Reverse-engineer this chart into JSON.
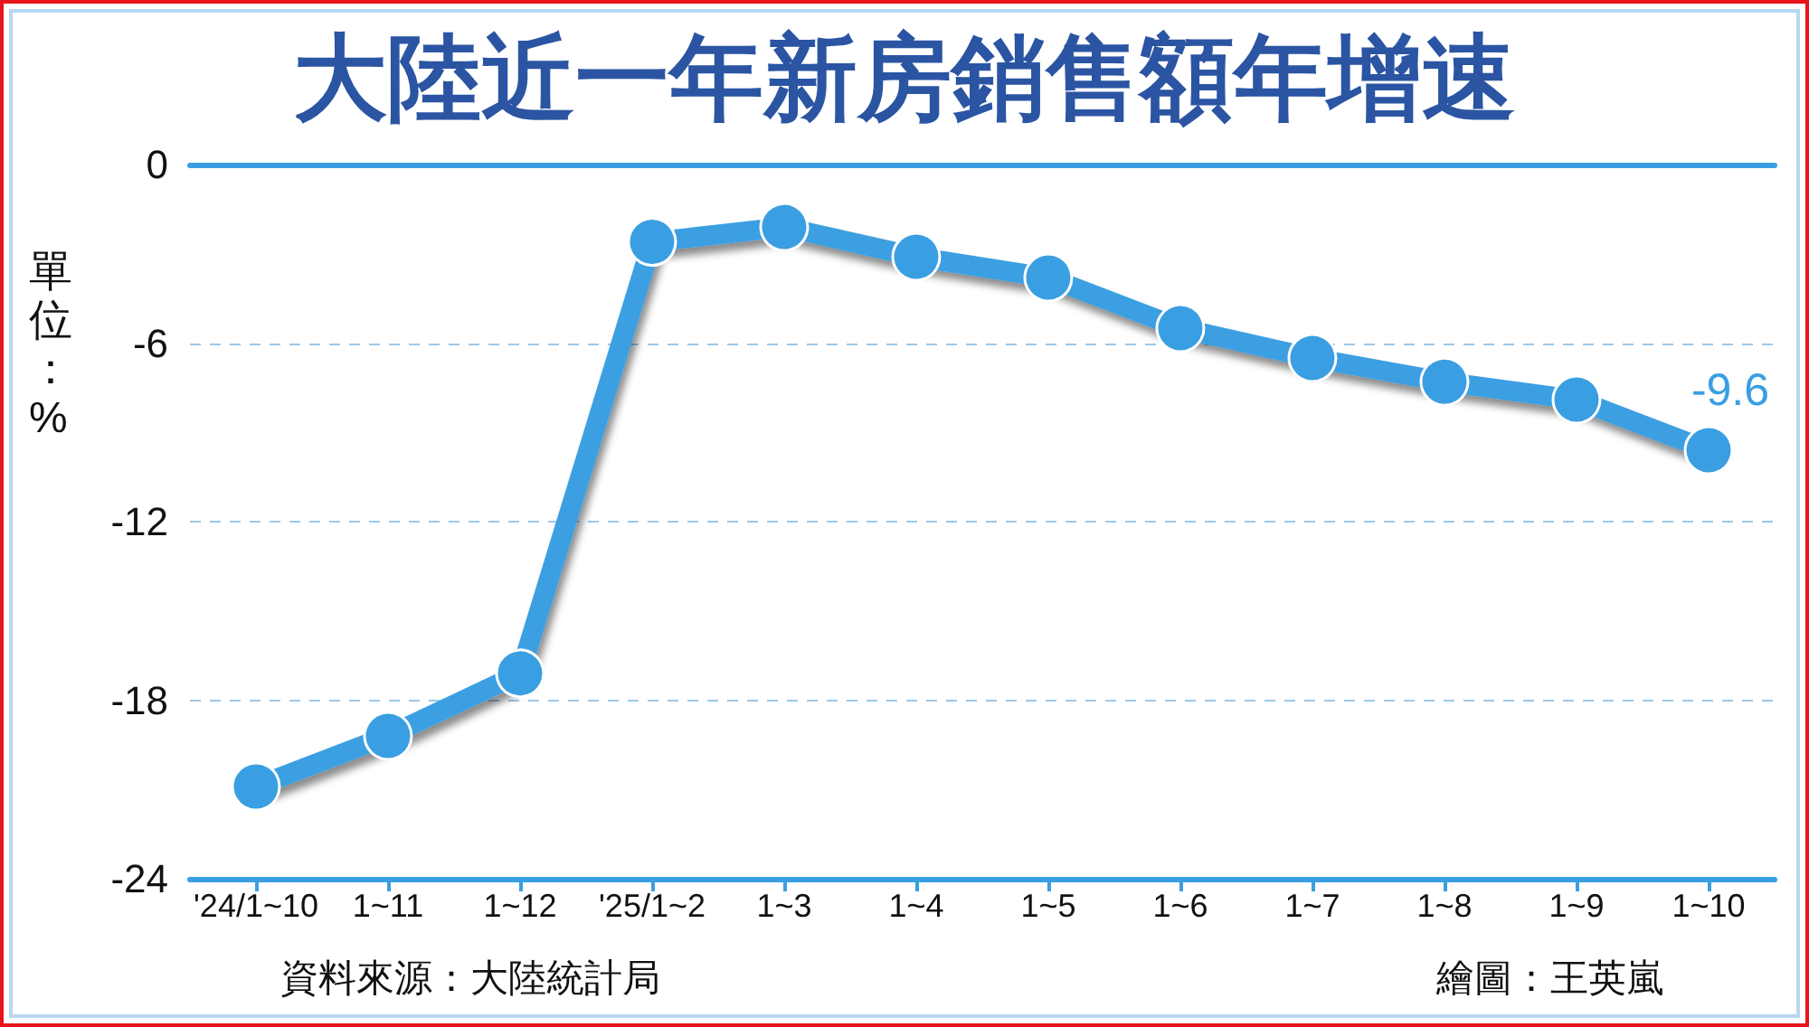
{
  "chart_data": {
    "type": "line",
    "title": "大陸近一年新房銷售額年增速",
    "ylabel": "單位：%",
    "annotations": [
      "資料來源：大陸統計局",
      "繪圖：王英嵐"
    ],
    "categories": [
      "'24/1~10",
      "1~11",
      "1~12",
      "'25/1~2",
      "1~3",
      "1~4",
      "1~5",
      "1~6",
      "1~7",
      "1~8",
      "1~9",
      "1~10"
    ],
    "series": [
      {
        "color": "#3a9fe2",
        "values": [
          -20.9,
          -19.2,
          -17.1,
          -2.6,
          -2.1,
          -3.1,
          -3.8,
          -5.5,
          -6.5,
          -7.3,
          -7.9,
          -9.6
        ],
        "value_labels": [
          null,
          null,
          null,
          null,
          null,
          null,
          null,
          null,
          null,
          null,
          null,
          "-9.6"
        ]
      }
    ],
    "ylim": [
      -24,
      0
    ],
    "yticks": [
      0,
      -6,
      -12,
      -18,
      -24
    ],
    "grid": "y",
    "marker": "circle",
    "line_style": "solid"
  }
}
